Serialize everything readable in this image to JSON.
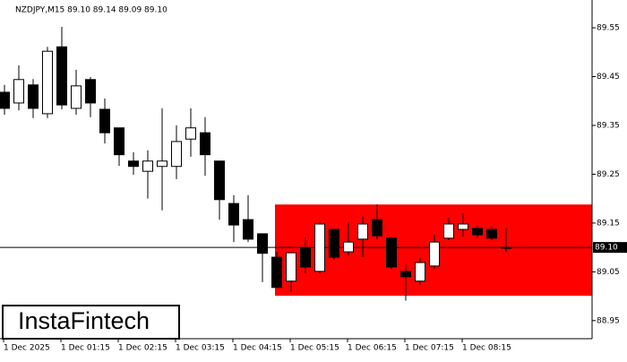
{
  "chart_data": {
    "type": "candlestick",
    "title": "NZDJPY,M15  89.10 89.14 89.09 89.10",
    "categories": [
      "1 Dec 2025",
      null,
      null,
      null,
      "1 Dec 01:15",
      null,
      null,
      null,
      "1 Dec 02:15",
      null,
      null,
      null,
      "1 Dec 03:15",
      null,
      null,
      null,
      "1 Dec 04:15",
      null,
      null,
      null,
      "1 Dec 05:15",
      null,
      null,
      null,
      "1 Dec 06:15",
      null,
      null,
      null,
      "1 Dec 07:15",
      null,
      null,
      null,
      "1 Dec 08:15",
      null,
      null,
      null
    ],
    "open": [
      89.418,
      89.396,
      89.433,
      89.374,
      89.511,
      89.385,
      89.444,
      89.383,
      89.345,
      89.277,
      89.256,
      89.266,
      89.266,
      89.322,
      89.335,
      89.277,
      89.19,
      89.157,
      89.128,
      89.08,
      89.031,
      89.099,
      89.051,
      89.137,
      89.091,
      89.117,
      89.157,
      89.119,
      89.051,
      89.031,
      89.062,
      89.119,
      89.137,
      89.139,
      89.137,
      89.1
    ],
    "high": [
      89.433,
      89.473,
      89.445,
      89.511,
      89.552,
      89.464,
      89.449,
      89.405,
      89.345,
      89.295,
      89.299,
      89.385,
      89.35,
      89.385,
      89.367,
      89.277,
      89.207,
      89.207,
      89.128,
      89.091,
      89.089,
      89.121,
      89.152,
      89.137,
      89.152,
      89.163,
      89.188,
      89.122,
      89.066,
      89.078,
      89.126,
      89.161,
      89.17,
      89.144,
      89.143,
      89.14
    ],
    "low": [
      89.372,
      89.381,
      89.365,
      89.365,
      89.383,
      89.372,
      89.367,
      89.313,
      89.267,
      89.249,
      89.2,
      89.176,
      89.24,
      89.286,
      89.247,
      89.157,
      89.111,
      89.111,
      89.029,
      89.018,
      89.009,
      89.047,
      89.047,
      89.075,
      89.084,
      89.08,
      89.117,
      89.056,
      88.991,
      89.023,
      89.056,
      89.115,
      89.122,
      89.119,
      89.115,
      89.09
    ],
    "close": [
      89.385,
      89.444,
      89.385,
      89.502,
      89.392,
      89.431,
      89.396,
      89.335,
      89.29,
      89.266,
      89.277,
      89.277,
      89.317,
      89.345,
      89.29,
      89.198,
      89.146,
      89.117,
      89.088,
      89.018,
      89.089,
      89.06,
      89.148,
      89.08,
      89.111,
      89.148,
      89.124,
      89.06,
      89.04,
      89.069,
      89.111,
      89.148,
      89.148,
      89.126,
      89.119,
      89.1
    ],
    "up_color": "#ffffff",
    "down_color": "#000000",
    "ylim": [
      88.913,
      89.607
    ],
    "yticks": [
      88.95,
      89.05,
      89.15,
      89.25,
      89.35,
      89.45,
      89.55
    ],
    "price_line": {
      "value": 89.1,
      "label": "89.10"
    },
    "zone": {
      "low": 89.001,
      "high": 89.188,
      "color": "#ff0000"
    },
    "logo": "InstaFintech"
  }
}
